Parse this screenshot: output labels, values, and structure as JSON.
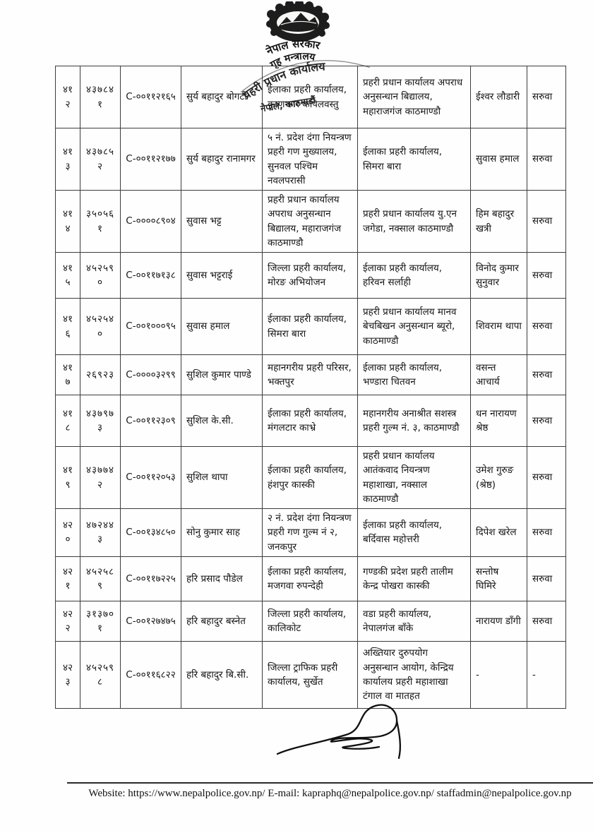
{
  "header": {
    "government_label": "नेपाल सरकार",
    "ministry_label": "गृह मन्त्रालय",
    "stamp_line1": "प्रहरी प्रधान कार्यालय",
    "stamp_line2": "नेपाल, काठमाडौं"
  },
  "table": {
    "rows": [
      {
        "sn": "४१२",
        "regno": "४३७८४१",
        "code": "C-००११२१६५",
        "name": "सुर्य बहादुर बोगटी",
        "from_office": "ईलाका प्रहरी कार्यालय, कृष्णनगर कपिलवस्तु",
        "to_office": "प्रहरी प्रधान कार्यालय अपराध अनुसन्धान बिद्यालय, महाराजगंज काठमाण्डौ",
        "recommender": "ईश्वर लौडारी",
        "action": "सरुवा"
      },
      {
        "sn": "४१३",
        "regno": "४३७८५२",
        "code": "C-००११२१७७",
        "name": "सुर्य बहादुर रानामगर",
        "from_office": "५ नं. प्रदेश दंगा नियन्त्रण प्रहरी गण मुख्यालय, सुनवल पश्चिम नवलपरासी",
        "to_office": "ईलाका प्रहरी कार्यालय, सिमरा बारा",
        "recommender": "सुवास हमाल",
        "action": "सरुवा"
      },
      {
        "sn": "४१४",
        "regno": "३५०५६१",
        "code": "C-००००८९०४",
        "name": "सुवास भट्ट",
        "from_office": "प्रहरी प्रधान कार्यालय अपराध अनुसन्धान बिद्यालय, महाराजगंज काठमाण्डौ",
        "to_office": "प्रहरी प्रधान कार्यालय यु.एन जगेडा, नक्साल काठमाण्डौ",
        "recommender": "हिम बहादुर खत्री",
        "action": "सरुवा"
      },
      {
        "sn": "४१५",
        "regno": "४५२५९०",
        "code": "C-००११७१३८",
        "name": "सुवास भट्टराई",
        "from_office": "जिल्ला प्रहरी कार्यालय, मोरङ अभियोजन",
        "to_office": "ईलाका प्रहरी कार्यालय, हरिवन सर्लाही",
        "recommender": "विनोद कुमार सुनुवार",
        "action": "सरुवा"
      },
      {
        "sn": "४१६",
        "regno": "४५२५४०",
        "code": "C-००१०००९५",
        "name": "सुवास हमाल",
        "from_office": "ईलाका प्रहरी कार्यालय, सिमरा बारा",
        "to_office": "प्रहरी प्रधान कार्यालय मानव बेचबिखन अनुसन्धान ब्यूरो, काठमाण्डौ",
        "recommender": "शिवराम थापा",
        "action": "सरुवा"
      },
      {
        "sn": "४१७",
        "regno": "२६९२३",
        "code": "C-००००३२९९",
        "name": "सुशिल कुमार पाण्डे",
        "from_office": "महानगरीय प्रहरी परिसर, भक्तपुर",
        "to_office": "ईलाका प्रहरी कार्यालय, भण्डारा चितवन",
        "recommender": "वसन्त आचार्य",
        "action": "सरुवा"
      },
      {
        "sn": "४१८",
        "regno": "४३७९७३",
        "code": "C-००११२३०९",
        "name": "सुशिल के.सी.",
        "from_office": "ईलाका प्रहरी कार्यालय, मंगलटार काभ्रे",
        "to_office": "महानगरीय अनाश्रीत सशस्त्र प्रहरी गुल्म नं. ३, काठमाण्डौ",
        "recommender": "धन नारायण श्रेष्ठ",
        "action": "सरुवा"
      },
      {
        "sn": "४१९",
        "regno": "४३७७४२",
        "code": "C-००११२०५३",
        "name": "सुशिल थापा",
        "from_office": "ईलाका प्रहरी कार्यालय, हंशपुर कास्की",
        "to_office": "प्रहरी प्रधान कार्यालय आतंकवाद नियन्त्रण महाशाखा, नक्साल काठमाण्डौ",
        "recommender": "उमेश गुरुङ (श्रेष्ठ)",
        "action": "सरुवा"
      },
      {
        "sn": "४२०",
        "regno": "४७२४४३",
        "code": "C-००१३४८५०",
        "name": "सोनु कुमार साह",
        "from_office": "२ नं. प्रदेश दंगा नियन्त्रण प्रहरी गण गुल्म नं २, जनकपुर",
        "to_office": "ईलाका प्रहरी कार्यालय, बर्दिवास महोत्तरी",
        "recommender": "दिपेश खरेल",
        "action": "सरुवा"
      },
      {
        "sn": "४२१",
        "regno": "४५२५८९",
        "code": "C-००११७२२५",
        "name": "हरि प्रसाद पौडेल",
        "from_office": "ईलाका प्रहरी कार्यालय, मजगवा रुपन्देही",
        "to_office": "गण्डकी प्रदेश प्रहरी तालीम केन्द्र पोखरा कास्की",
        "recommender": "सन्तोष घिमिरे",
        "action": "सरुवा"
      },
      {
        "sn": "४२२",
        "regno": "३१३७०१",
        "code": "C-००१२७४७५",
        "name": "हरि बहादुर बस्नेत",
        "from_office": "जिल्ला प्रहरी कार्यालय, कालिकोट",
        "to_office": "वडा प्रहरी कार्यालय, नेपालगंज बाँके",
        "recommender": "नारायण डाँगी",
        "action": "सरुवा"
      },
      {
        "sn": "४२३",
        "regno": "४५२५९८",
        "code": "C-००११६८२२",
        "name": "हरि बहादुर बि.सी.",
        "from_office": "जिल्ला ट्राफिक प्रहरी कार्यालय, सुर्खेत",
        "to_office": "अख्तियार दुरुपयोग अनुसन्धान आयोग, केन्द्रिय कार्यालय प्रहरी महाशाखा टंगाल वा मातहत",
        "recommender": "-",
        "action": "-"
      }
    ]
  },
  "footer": {
    "contact": "Website: https://www.nepalpolice.gov.np/ E-mail: kapraphq@nepalpolice.gov.np/ staffadmin@nepalpolice.gov.np"
  }
}
